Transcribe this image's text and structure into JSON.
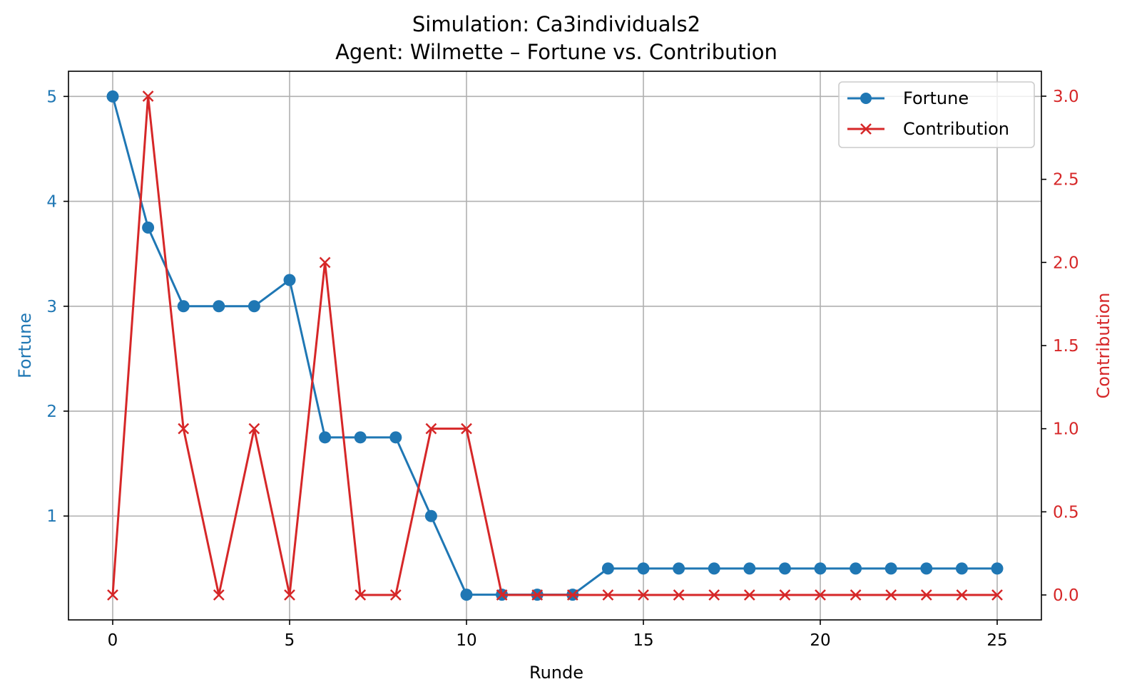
{
  "chart_data": {
    "type": "line",
    "title": "Simulation: Ca3individuals2",
    "subtitle": "Agent: Wilmette – Fortune vs. Contribution",
    "xlabel": "Runde",
    "ylabel_left": "Fortune",
    "ylabel_right": "Contribution",
    "xlim": [
      -1.25,
      26.25
    ],
    "ylim_left": [
      0.01,
      5.24
    ],
    "ylim_right": [
      -0.15,
      3.15
    ],
    "x_ticks": [
      0,
      5,
      10,
      15,
      20,
      25
    ],
    "y_ticks_left": [
      1,
      2,
      3,
      4,
      5
    ],
    "y_ticks_right": [
      0.0,
      0.5,
      1.0,
      1.5,
      2.0,
      2.5,
      3.0
    ],
    "grid": true,
    "legend_position": "upper right",
    "x": [
      0,
      1,
      2,
      3,
      4,
      5,
      6,
      7,
      8,
      9,
      10,
      11,
      12,
      13,
      14,
      15,
      16,
      17,
      18,
      19,
      20,
      21,
      22,
      23,
      24,
      25
    ],
    "series": [
      {
        "name": "Fortune",
        "axis": "left",
        "color": "#1f77b4",
        "marker": "circle",
        "values": [
          5,
          3.75,
          3,
          3,
          3,
          3.25,
          1.75,
          1.75,
          1.75,
          1,
          0.25,
          0.25,
          0.25,
          0.25,
          0.5,
          0.5,
          0.5,
          0.5,
          0.5,
          0.5,
          0.5,
          0.5,
          0.5,
          0.5,
          0.5,
          0.5
        ]
      },
      {
        "name": "Contribution",
        "axis": "right",
        "color": "#d62728",
        "marker": "x",
        "values": [
          0,
          3,
          1,
          0,
          1,
          0,
          2,
          0,
          0,
          1,
          1,
          0,
          0,
          0,
          0,
          0,
          0,
          0,
          0,
          0,
          0,
          0,
          0,
          0,
          0,
          0
        ]
      }
    ]
  }
}
